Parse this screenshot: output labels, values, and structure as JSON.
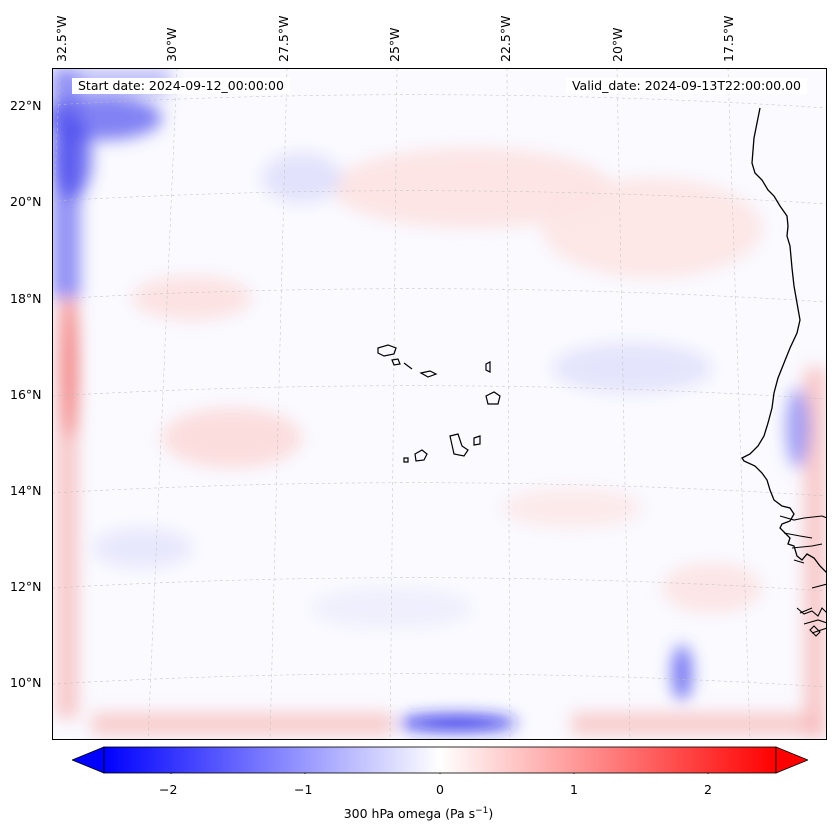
{
  "header": {
    "start_date": "Start date: 2024-09-12_00:00:00",
    "valid_date": "Valid_date: 2024-09-13T22:00:00.00"
  },
  "map": {
    "lon_labels": [
      "32.5°W",
      "30°W",
      "27.5°W",
      "25°W",
      "22.5°W",
      "20°W",
      "17.5°W"
    ],
    "lat_labels": [
      "22°N",
      "20°N",
      "18°N",
      "16°N",
      "14°N",
      "12°N",
      "10°N"
    ],
    "gridlines": "dashed-light-gray",
    "coastline_color": "#000000",
    "field_colors": {
      "negative": "#3a3af5",
      "neutral": "#ffffff",
      "positive": "#f53a3a"
    }
  },
  "colorbar": {
    "tick_labels": [
      "−2",
      "−1",
      "0",
      "1",
      "2"
    ],
    "title": "300 hPa omega (Pa s",
    "title_sup": "−1",
    "title_end": ")",
    "cmap": "bwr",
    "range": [
      -2.7,
      2.7
    ],
    "extend": "both"
  }
}
